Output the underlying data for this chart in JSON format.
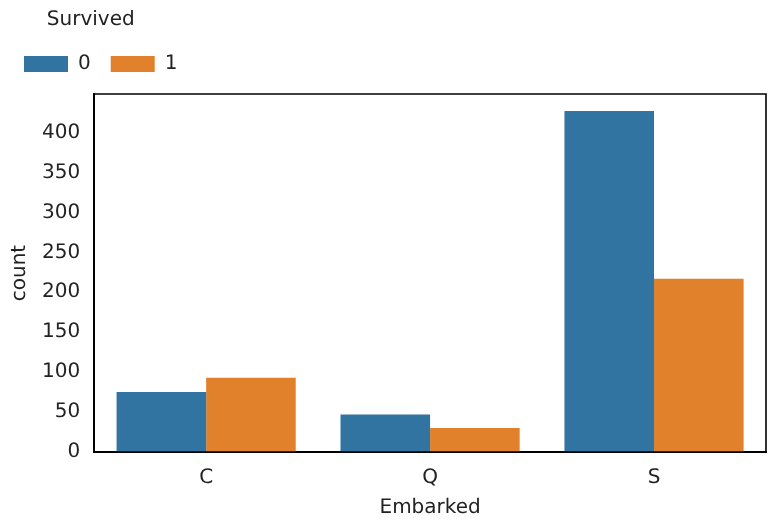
{
  "chart_data": {
    "type": "bar",
    "xlabel": "Embarked",
    "ylabel": "count",
    "legend_title": "Survived",
    "categories": [
      "C",
      "Q",
      "S"
    ],
    "series": [
      {
        "name": "0",
        "color": "#3274a1",
        "values": [
          75,
          47,
          427
        ]
      },
      {
        "name": "1",
        "color": "#e1812c",
        "values": [
          93,
          30,
          217
        ]
      }
    ],
    "ylim": [
      0,
      448.35
    ],
    "yticks": [
      0,
      50,
      100,
      150,
      200,
      250,
      300,
      350,
      400
    ],
    "grid": false,
    "legend": "top left"
  }
}
